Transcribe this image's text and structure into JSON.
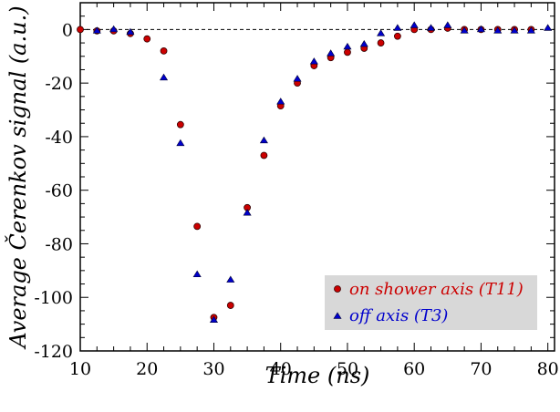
{
  "chart_data": {
    "type": "scatter",
    "xlabel": "Time (ns)",
    "ylabel": "Average Čerenkov signal (a.u.)",
    "xlim": [
      10,
      81
    ],
    "ylim": [
      -120,
      10
    ],
    "xticks": [
      10,
      20,
      30,
      40,
      50,
      60,
      70,
      80
    ],
    "yticks": [
      0,
      -20,
      -40,
      -60,
      -80,
      -100,
      -120
    ],
    "reference_line": 0,
    "grid": false,
    "legend": "bottom-right",
    "colors": {
      "red": "#cc0000",
      "blue": "#0000cc"
    },
    "series": [
      {
        "name": "on shower axis (T11)",
        "marker": "circle",
        "color": "#cc0000",
        "x": [
          10,
          12.5,
          15,
          17.5,
          20,
          22.5,
          25,
          27.5,
          30,
          32.5,
          35,
          37.5,
          40,
          42.5,
          45,
          47.5,
          50,
          52.5,
          55,
          57.5,
          60,
          62.5,
          65,
          67.5,
          70,
          72.5,
          75,
          77.5
        ],
        "y": [
          0,
          -0.5,
          -0.5,
          -1.5,
          -3.5,
          -8,
          -35.5,
          -73.5,
          -107.5,
          -103,
          -66.5,
          -47,
          -28.5,
          -20,
          -13.5,
          -10.5,
          -8.5,
          -7,
          -5,
          -2.5,
          0,
          0,
          0.5,
          0,
          0,
          0,
          0,
          0
        ]
      },
      {
        "name": "off axis (T3)",
        "marker": "triangle",
        "color": "#0000cc",
        "x": [
          12.5,
          15,
          17.5,
          22.5,
          25,
          27.5,
          30,
          32.5,
          35,
          37.5,
          40,
          42.5,
          45,
          47.5,
          50,
          52.5,
          55,
          57.5,
          60,
          62.5,
          65,
          67.5,
          70,
          72.5,
          75,
          77.5,
          80
        ],
        "y": [
          -0.5,
          0,
          -1,
          -18,
          -42.5,
          -91.5,
          -108.5,
          -93.5,
          -68.5,
          -41.5,
          -27,
          -18.5,
          -12,
          -9,
          -6.5,
          -5.5,
          -1.5,
          0.5,
          1.5,
          0.5,
          1.5,
          -0.5,
          0,
          -0.5,
          -0.5,
          -0.5,
          0.5
        ]
      }
    ]
  }
}
